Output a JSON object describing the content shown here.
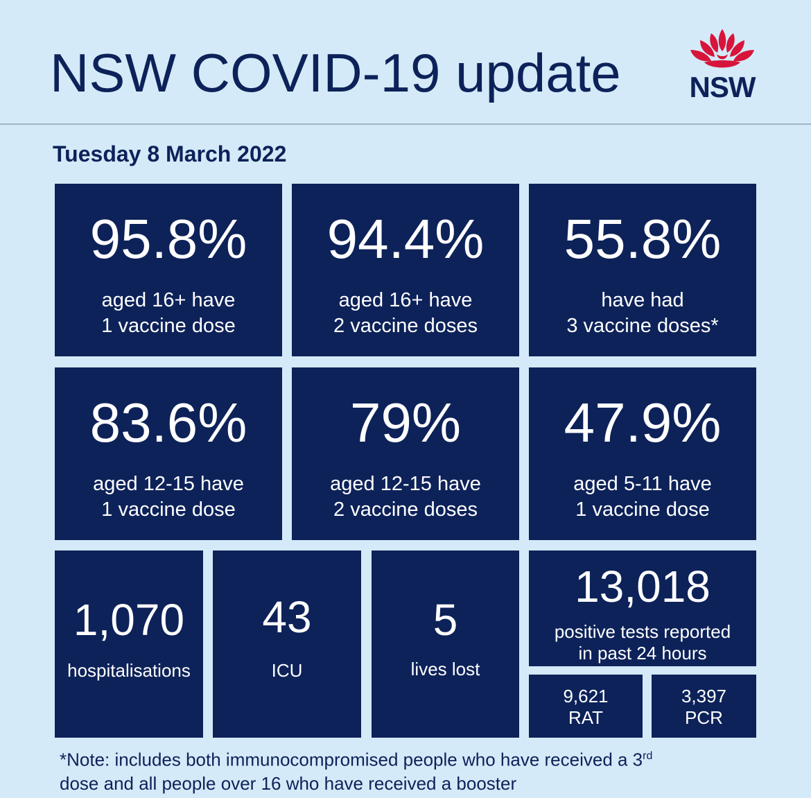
{
  "header": {
    "title": "NSW COVID-19 update",
    "logo_text": "NSW"
  },
  "date": "Tuesday 8 March 2022",
  "vaccination": [
    {
      "value": "95.8%",
      "line1": "aged 16+ have",
      "line2": "1 vaccine dose"
    },
    {
      "value": "94.4%",
      "line1": "aged 16+ have",
      "line2": "2 vaccine doses"
    },
    {
      "value": "55.8%",
      "line1": "have had",
      "line2": "3 vaccine doses*"
    },
    {
      "value": "83.6%",
      "line1": "aged 12-15 have",
      "line2": "1 vaccine dose"
    },
    {
      "value": "79%",
      "line1": "aged 12-15 have",
      "line2": "2 vaccine doses"
    },
    {
      "value": "47.9%",
      "line1": "aged 5-11 have",
      "line2": "1 vaccine dose"
    }
  ],
  "stats": {
    "hospitalisations": {
      "value": "1,070",
      "label": "hospitalisations"
    },
    "icu": {
      "value": "43",
      "label": "ICU"
    },
    "lives_lost": {
      "value": "5",
      "label": "lives lost"
    },
    "positive": {
      "value": "13,018",
      "line1": "positive tests reported",
      "line2": "in past 24 hours"
    },
    "rat": {
      "value": "9,621",
      "label": "RAT"
    },
    "pcr": {
      "value": "3,397",
      "label": "PCR"
    }
  },
  "note": {
    "line1_before": "*Note: includes both immunocompromised  people who have received a 3",
    "sup": "rd",
    "line2": "dose and all people over 16 who have received a booster"
  },
  "colors": {
    "background": "#d4eaf8",
    "tile": "#0d2259",
    "logo_red": "#d7153a"
  }
}
